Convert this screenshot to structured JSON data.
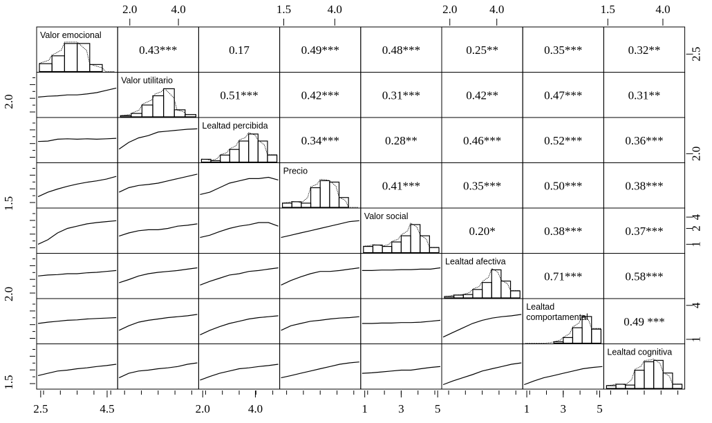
{
  "chart_data": {
    "type": "scatterplot-matrix",
    "variables": [
      "Valor emocional",
      "Valor utilitario",
      "Lealtad percibida",
      "Precio",
      "Valor social",
      "Lealtad afectiva",
      "Lealtad comportamental",
      "Lealtad cognitiva"
    ],
    "diagonal_labels": [
      [
        "Valor emocional"
      ],
      [
        "Valor utilitario"
      ],
      [
        "Lealtad percibida"
      ],
      [
        "Precio"
      ],
      [
        "Valor social"
      ],
      [
        "Lealtad afectiva"
      ],
      [
        "Lealtad",
        "comportamental"
      ],
      [
        "Lealtad cognitiva"
      ]
    ],
    "correlations": [
      {
        "row": 0,
        "col": 1,
        "text": "0.43***"
      },
      {
        "row": 0,
        "col": 2,
        "text": "0.17"
      },
      {
        "row": 0,
        "col": 3,
        "text": "0.49***"
      },
      {
        "row": 0,
        "col": 4,
        "text": "0.48***"
      },
      {
        "row": 0,
        "col": 5,
        "text": "0.25**"
      },
      {
        "row": 0,
        "col": 6,
        "text": "0.35***"
      },
      {
        "row": 0,
        "col": 7,
        "text": "0.32**"
      },
      {
        "row": 1,
        "col": 2,
        "text": "0.51***"
      },
      {
        "row": 1,
        "col": 3,
        "text": "0.42***"
      },
      {
        "row": 1,
        "col": 4,
        "text": "0.31***"
      },
      {
        "row": 1,
        "col": 5,
        "text": "0.42**"
      },
      {
        "row": 1,
        "col": 6,
        "text": "0.47***"
      },
      {
        "row": 1,
        "col": 7,
        "text": "0.31**"
      },
      {
        "row": 2,
        "col": 3,
        "text": "0.34***"
      },
      {
        "row": 2,
        "col": 4,
        "text": "0.28**"
      },
      {
        "row": 2,
        "col": 5,
        "text": "0.46***"
      },
      {
        "row": 2,
        "col": 6,
        "text": "0.52***"
      },
      {
        "row": 2,
        "col": 7,
        "text": "0.36***"
      },
      {
        "row": 3,
        "col": 4,
        "text": "0.41***"
      },
      {
        "row": 3,
        "col": 5,
        "text": "0.35***"
      },
      {
        "row": 3,
        "col": 6,
        "text": "0.50***"
      },
      {
        "row": 3,
        "col": 7,
        "text": "0.38***"
      },
      {
        "row": 4,
        "col": 5,
        "text": "0.20*"
      },
      {
        "row": 4,
        "col": 6,
        "text": "0.38***"
      },
      {
        "row": 4,
        "col": 7,
        "text": "0.37***"
      },
      {
        "row": 5,
        "col": 6,
        "text": "0.71***"
      },
      {
        "row": 5,
        "col": 7,
        "text": "0.58***"
      },
      {
        "row": 6,
        "col": 7,
        "text": "0.49 ***"
      }
    ],
    "histograms": [
      {
        "var": "Valor emocional",
        "bins": [
          2.2,
          2.6,
          3.0,
          3.4,
          3.8,
          4.2,
          4.6
        ],
        "counts": [
          0.28,
          0.56,
          1.0,
          1.0,
          0.25,
          0.0
        ]
      },
      {
        "var": "Valor utilitario",
        "bins": [
          1.5,
          2.0,
          2.5,
          3.0,
          3.5,
          4.0,
          4.5,
          5.0
        ],
        "counts": [
          0.04,
          0.12,
          0.42,
          0.75,
          1.0,
          0.25,
          0.08
        ]
      },
      {
        "var": "Lealtad percibida",
        "bins": [
          1.0,
          1.5,
          2.0,
          2.5,
          3.0,
          3.5,
          4.0,
          4.5,
          5.0
        ],
        "counts": [
          0.1,
          0.05,
          0.25,
          0.45,
          0.75,
          1.0,
          0.75,
          0.25
        ]
      },
      {
        "var": "Precio",
        "bins": [
          1.0,
          1.5,
          2.0,
          2.5,
          3.0,
          3.5,
          4.0,
          4.5,
          5.0
        ],
        "counts": [
          0.15,
          0.2,
          0.15,
          0.7,
          0.95,
          0.9,
          0.35,
          0.0
        ]
      },
      {
        "var": "Valor social",
        "bins": [
          1.0,
          1.5,
          2.0,
          2.5,
          3.0,
          3.5,
          4.0,
          4.5,
          5.0
        ],
        "counts": [
          0.22,
          0.27,
          0.22,
          0.38,
          0.6,
          1.0,
          0.6,
          0.18
        ]
      },
      {
        "var": "Lealtad afectiva",
        "bins": [
          1.0,
          1.5,
          2.0,
          2.5,
          3.0,
          3.5,
          4.0,
          4.5,
          5.0
        ],
        "counts": [
          0.05,
          0.1,
          0.12,
          0.3,
          0.55,
          1.0,
          0.6,
          0.25
        ]
      },
      {
        "var": "Lealtad comportamental",
        "bins": [
          1.0,
          1.5,
          2.0,
          2.5,
          3.0,
          3.5,
          4.0,
          4.5,
          5.0
        ],
        "counts": [
          0.0,
          0.0,
          0.0,
          0.05,
          0.2,
          0.55,
          0.95,
          0.5
        ]
      },
      {
        "var": "Lealtad cognitiva",
        "bins": [
          1.0,
          1.5,
          2.0,
          2.5,
          3.0,
          3.5,
          4.0,
          4.5,
          5.0
        ],
        "counts": [
          0.1,
          0.15,
          0.12,
          0.65,
          0.95,
          1.0,
          0.55,
          0.15
        ]
      }
    ],
    "smoothers": {
      "1,0": [
        0.45,
        0.47,
        0.48,
        0.5,
        0.5,
        0.52,
        0.55,
        0.6,
        0.65
      ],
      "2,0": [
        0.47,
        0.48,
        0.52,
        0.53,
        0.52,
        0.53,
        0.52,
        0.53,
        0.54
      ],
      "2,1": [
        0.3,
        0.45,
        0.55,
        0.6,
        0.68,
        0.7,
        0.72,
        0.74,
        0.75
      ],
      "3,0": [
        0.25,
        0.35,
        0.42,
        0.48,
        0.53,
        0.57,
        0.6,
        0.64,
        0.7
      ],
      "3,1": [
        0.35,
        0.45,
        0.5,
        0.52,
        0.55,
        0.6,
        0.65,
        0.7,
        0.75
      ],
      "3,2": [
        0.3,
        0.35,
        0.45,
        0.55,
        0.6,
        0.65,
        0.65,
        0.68,
        0.62
      ],
      "4,0": [
        0.2,
        0.3,
        0.45,
        0.55,
        0.6,
        0.65,
        0.68,
        0.7,
        0.72
      ],
      "4,1": [
        0.38,
        0.45,
        0.5,
        0.52,
        0.52,
        0.55,
        0.6,
        0.62,
        0.65
      ],
      "4,2": [
        0.35,
        0.4,
        0.48,
        0.55,
        0.6,
        0.63,
        0.68,
        0.68,
        0.6
      ],
      "4,3": [
        0.35,
        0.4,
        0.45,
        0.5,
        0.55,
        0.6,
        0.65,
        0.7,
        0.72
      ],
      "5,0": [
        0.5,
        0.52,
        0.53,
        0.55,
        0.55,
        0.57,
        0.58,
        0.6,
        0.62
      ],
      "5,1": [
        0.35,
        0.42,
        0.5,
        0.55,
        0.58,
        0.6,
        0.62,
        0.65,
        0.68
      ],
      "5,2": [
        0.3,
        0.38,
        0.45,
        0.52,
        0.55,
        0.6,
        0.62,
        0.65,
        0.68
      ],
      "5,3": [
        0.3,
        0.4,
        0.48,
        0.55,
        0.6,
        0.6,
        0.62,
        0.65,
        0.68
      ],
      "5,4": [
        0.62,
        0.62,
        0.63,
        0.63,
        0.64,
        0.64,
        0.65,
        0.65,
        0.68
      ],
      "6,0": [
        0.45,
        0.48,
        0.5,
        0.52,
        0.53,
        0.55,
        0.56,
        0.57,
        0.58
      ],
      "6,1": [
        0.3,
        0.4,
        0.48,
        0.52,
        0.55,
        0.58,
        0.6,
        0.62,
        0.65
      ],
      "6,2": [
        0.2,
        0.3,
        0.38,
        0.45,
        0.5,
        0.55,
        0.58,
        0.6,
        0.62
      ],
      "6,3": [
        0.3,
        0.4,
        0.45,
        0.5,
        0.52,
        0.55,
        0.57,
        0.58,
        0.6
      ],
      "6,4": [
        0.45,
        0.45,
        0.46,
        0.46,
        0.47,
        0.47,
        0.48,
        0.5,
        0.52
      ],
      "6,5": [
        0.15,
        0.25,
        0.35,
        0.45,
        0.52,
        0.57,
        0.6,
        0.62,
        0.65
      ],
      "7,0": [
        0.3,
        0.35,
        0.4,
        0.42,
        0.45,
        0.47,
        0.5,
        0.52,
        0.55
      ],
      "7,1": [
        0.25,
        0.35,
        0.4,
        0.42,
        0.45,
        0.47,
        0.5,
        0.55,
        0.58
      ],
      "7,2": [
        0.2,
        0.28,
        0.35,
        0.4,
        0.45,
        0.47,
        0.5,
        0.52,
        0.55
      ],
      "7,3": [
        0.25,
        0.3,
        0.35,
        0.4,
        0.45,
        0.5,
        0.55,
        0.58,
        0.6
      ],
      "7,4": [
        0.35,
        0.36,
        0.38,
        0.4,
        0.42,
        0.42,
        0.45,
        0.48,
        0.5
      ],
      "7,5": [
        0.1,
        0.18,
        0.25,
        0.32,
        0.4,
        0.45,
        0.5,
        0.55,
        0.58
      ],
      "7,6": [
        0.1,
        0.18,
        0.25,
        0.3,
        0.35,
        0.4,
        0.45,
        0.48,
        0.5
      ]
    },
    "axes": {
      "top": [
        {
          "col": 1,
          "ticks": [
            {
              "v": 0.15,
              "t": "2.0"
            },
            {
              "v": 0.75,
              "t": "4.0"
            }
          ]
        },
        {
          "col": 3,
          "ticks": [
            {
              "v": 0.05,
              "t": "1.5"
            },
            {
              "v": 0.68,
              "t": "4.0"
            }
          ]
        },
        {
          "col": 5,
          "ticks": [
            {
              "v": 0.1,
              "t": "2.0"
            },
            {
              "v": 0.68,
              "t": "4.0"
            }
          ]
        },
        {
          "col": 7,
          "ticks": [
            {
              "v": 0.05,
              "t": "1.5"
            },
            {
              "v": 0.73,
              "t": "4.0"
            }
          ]
        }
      ],
      "bottom": [
        {
          "col": 0,
          "ticks": [
            {
              "v": 0.05,
              "t": "2.5"
            },
            {
              "v": 0.87,
              "t": "4.5"
            }
          ]
        },
        {
          "col": 2,
          "ticks": [
            {
              "v": 0.05,
              "t": "2.0"
            },
            {
              "v": 0.7,
              "t": "4.0"
            }
          ]
        },
        {
          "col": 4,
          "ticks": [
            {
              "v": 0.05,
              "t": "1"
            },
            {
              "v": 0.5,
              "t": "3"
            },
            {
              "v": 0.95,
              "t": "5"
            }
          ]
        },
        {
          "col": 6,
          "ticks": [
            {
              "v": 0.05,
              "t": "1"
            },
            {
              "v": 0.5,
              "t": "3"
            },
            {
              "v": 0.95,
              "t": "5"
            }
          ]
        }
      ],
      "left": [
        {
          "row": 1,
          "ticks": [
            {
              "v": 0.35,
              "t": "2.0"
            }
          ]
        },
        {
          "row": 3,
          "ticks": [
            {
              "v": 0.1,
              "t": "1.5"
            }
          ]
        },
        {
          "row": 5,
          "ticks": [
            {
              "v": 0.1,
              "t": "2.0"
            }
          ]
        },
        {
          "row": 7,
          "ticks": [
            {
              "v": 0.15,
              "t": "1.5"
            }
          ]
        }
      ],
      "right": [
        {
          "row": 0,
          "ticks": [
            {
              "v": 0.4,
              "t": "2.5"
            }
          ]
        },
        {
          "row": 2,
          "ticks": [
            {
              "v": 0.2,
              "t": "2.0"
            }
          ]
        },
        {
          "row": 4,
          "ticks": [
            {
              "v": 0.2,
              "t": "1"
            },
            {
              "v": 0.55,
              "t": "2"
            },
            {
              "v": 0.8,
              "t": "4"
            }
          ]
        },
        {
          "row": 6,
          "ticks": [
            {
              "v": 0.1,
              "t": "1"
            },
            {
              "v": 0.85,
              "t": "4"
            }
          ]
        }
      ]
    }
  }
}
